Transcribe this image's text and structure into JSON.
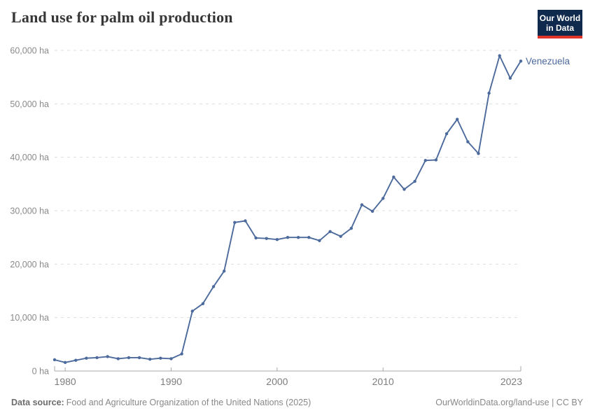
{
  "header": {
    "logo": {
      "line1": "Our World",
      "line2": "in Data",
      "bg_color": "#102a4e",
      "underline_color": "#e0352b"
    }
  },
  "chart_data": {
    "type": "line",
    "title": "Land use for palm oil production",
    "unit": "ha",
    "xlabel": "",
    "ylabel": "ha",
    "xlim": [
      1979,
      2023
    ],
    "ylim": [
      0,
      60000
    ],
    "x_ticks": [
      1980,
      1990,
      2000,
      2010,
      2023
    ],
    "y_ticks": [
      0,
      10000,
      20000,
      30000,
      40000,
      50000,
      60000
    ],
    "grid": "horizontal-dashed",
    "legend_position": "end-of-line-label",
    "series": [
      {
        "name": "Venezuela",
        "color": "#4C6A9C",
        "x": [
          1979,
          1980,
          1981,
          1982,
          1983,
          1984,
          1985,
          1986,
          1987,
          1988,
          1989,
          1990,
          1991,
          1992,
          1993,
          1994,
          1995,
          1996,
          1997,
          1998,
          1999,
          2000,
          2001,
          2002,
          2003,
          2004,
          2005,
          2006,
          2007,
          2008,
          2009,
          2010,
          2011,
          2012,
          2013,
          2014,
          2015,
          2016,
          2017,
          2018,
          2019,
          2020,
          2021,
          2022,
          2023
        ],
        "values": [
          2100,
          1600,
          2000,
          2400,
          2500,
          2700,
          2300,
          2500,
          2500,
          2200,
          2400,
          2300,
          3200,
          11200,
          12600,
          15800,
          18700,
          27800,
          28100,
          24900,
          24800,
          24600,
          25000,
          25000,
          25000,
          24400,
          26100,
          25200,
          26700,
          31100,
          29900,
          32300,
          36300,
          34000,
          35500,
          39400,
          39500,
          44400,
          47100,
          42900,
          40700,
          52000,
          59000,
          54800,
          58000
        ]
      }
    ],
    "colors": {
      "gridline": "#dedede",
      "axis": "#a8a8a8",
      "y_tick_label": "#8a8a8a",
      "x_tick_label": "#7d7d7d",
      "title": "#363636",
      "footer": "#888888"
    }
  },
  "footer": {
    "source_label": "Data source:",
    "source_text": "Food and Agriculture Organization of the United Nations (2025)",
    "url_and_license": "OurWorldinData.org/land-use | CC BY"
  }
}
